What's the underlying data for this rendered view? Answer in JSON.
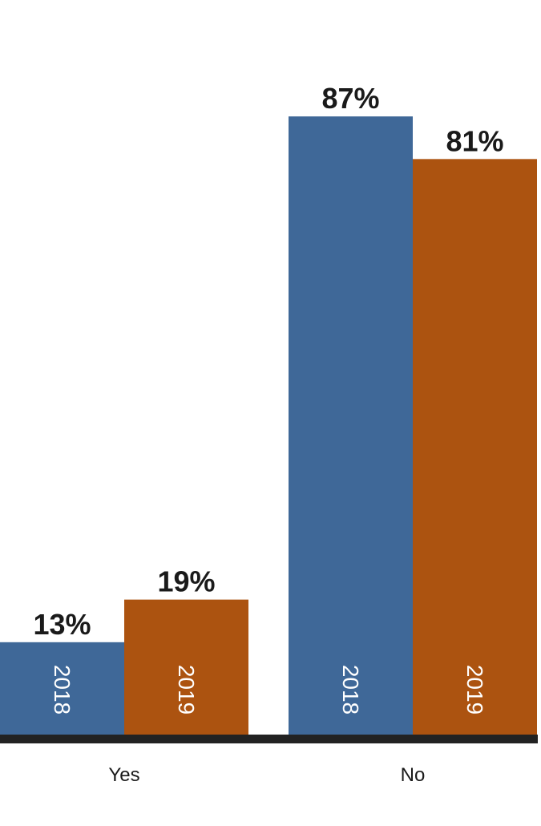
{
  "chart_data": {
    "type": "bar",
    "categories": [
      "Yes",
      "No"
    ],
    "series": [
      {
        "label": "2018",
        "color": "#3f6898",
        "values": [
          13,
          87
        ],
        "value_labels": [
          "13%",
          "87%"
        ]
      },
      {
        "label": "2019",
        "color": "#ac5310",
        "values": [
          19,
          81
        ],
        "value_labels": [
          "19%",
          "81%"
        ]
      }
    ],
    "ylim": [
      0,
      100
    ],
    "grid": false,
    "legend": "none (series labels printed inside bars)",
    "baseline_color": "#222222"
  }
}
